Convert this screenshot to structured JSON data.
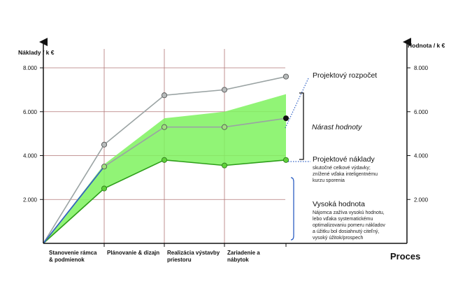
{
  "chart_data": {
    "type": "line",
    "title": "",
    "ylabel_left": "Náklady / k €",
    "ylabel_right": "Hodnota / k €",
    "xlabel": "Proces",
    "ylim": [
      0,
      8800
    ],
    "y_ticks_left": [
      "2.000",
      "4.000",
      "6.000",
      "8.000"
    ],
    "y_ticks_right": [
      "2.000",
      "4.000",
      "6.000",
      "8.000"
    ],
    "y_tick_values": [
      2000,
      4000,
      6000,
      8000
    ],
    "categories": [
      "Stanovenie rámca\n& podmienok",
      "Plánovanie & dizajn",
      "Realizácia výstavby\npriestoru",
      "Zariadenie a\nnábytok"
    ],
    "series": [
      {
        "name": "Projektový rozpočet",
        "x": [
          0,
          1,
          2,
          3,
          4
        ],
        "values": [
          0,
          4500,
          6750,
          7000,
          7600
        ],
        "color": "#9aa3a3"
      },
      {
        "name": "Projektové náklady",
        "x": [
          0,
          1,
          2,
          3,
          4
        ],
        "values": [
          0,
          2500,
          3800,
          3550,
          3800
        ],
        "color": "#2e9e1a"
      },
      {
        "name": "",
        "x": [
          0,
          1,
          2,
          3,
          4
        ],
        "values": [
          0,
          3500,
          5300,
          5300,
          5700
        ],
        "color": "#9aa3a3"
      }
    ],
    "band": {
      "x": [
        0,
        1,
        2,
        3,
        4
      ],
      "upper": [
        0,
        3600,
        5700,
        6000,
        6800
      ],
      "lower": [
        0,
        2500,
        3800,
        3550,
        3800
      ],
      "color": "#7ef25e"
    },
    "grid": true,
    "annotations": {
      "budget": "Projektový rozpočet",
      "value_increase": "Nárast hodnoty",
      "costs": "Projektové náklady",
      "costs_note": [
        "skutočné celkové výdavky;",
        "znížené vďaka inteligentnému",
        "kurzu sporenia"
      ],
      "high_value": "Vysoká hodnota",
      "high_value_note": [
        "Nájomca zažíva vysokú hodnotu,",
        "lebo vďaka systematickému",
        "optimalizovaniu pomeru nákladov",
        "a úžitku bol dosiahnutý citeľný,",
        "vysoký úžitok/prospech"
      ]
    }
  }
}
